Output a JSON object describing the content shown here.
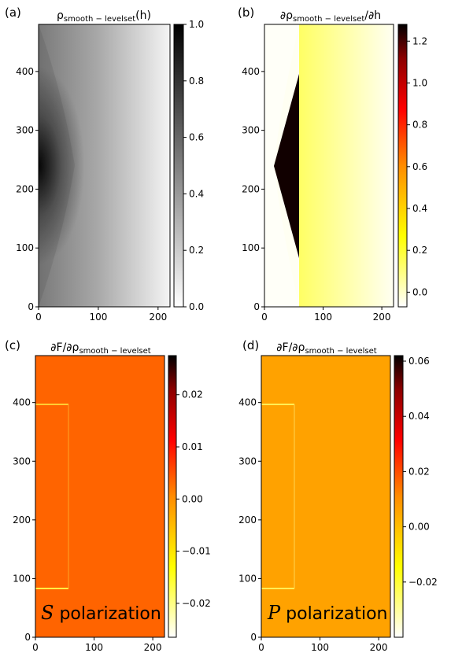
{
  "chart_data": [
    {
      "type": "heatmap",
      "panel_label": "(a)",
      "title_parts": [
        "ρ",
        "smooth − levelset",
        "(h)"
      ],
      "xlim": [
        0,
        220
      ],
      "ylim": [
        0,
        480
      ],
      "xticks": [
        0,
        100,
        200
      ],
      "yticks": [
        0,
        100,
        200,
        300,
        400
      ],
      "colormap": "gray_r",
      "colorbar": {
        "range": [
          0.0,
          1.0
        ],
        "ticks": [
          "0.0",
          "0.2",
          "0.4",
          "0.6",
          "0.8",
          "1.0"
        ],
        "tick_values": [
          0.0,
          0.2,
          0.4,
          0.6,
          0.8,
          1.0
        ]
      },
      "annotation": null
    },
    {
      "type": "heatmap",
      "panel_label": "(b)",
      "title_parts": [
        "∂ρ",
        "smooth − levelset",
        "/∂h"
      ],
      "xlim": [
        0,
        220
      ],
      "ylim": [
        0,
        480
      ],
      "xticks": [
        0,
        100,
        200
      ],
      "yticks": [
        0,
        100,
        200,
        300,
        400
      ],
      "colormap": "hot_r",
      "colorbar": {
        "range": [
          -0.07,
          1.28
        ],
        "ticks": [
          "0.0",
          "0.2",
          "0.4",
          "0.6",
          "0.8",
          "1.0",
          "1.2"
        ],
        "tick_values": [
          0.0,
          0.2,
          0.4,
          0.6,
          0.8,
          1.0,
          1.2
        ]
      },
      "annotation": null
    },
    {
      "type": "heatmap",
      "panel_label": "(c)",
      "title_parts": [
        "∂F/∂ρ",
        "smooth − levelset",
        ""
      ],
      "xlim": [
        0,
        220
      ],
      "ylim": [
        0,
        480
      ],
      "xticks": [
        0,
        100,
        200
      ],
      "yticks": [
        0,
        100,
        200,
        300,
        400
      ],
      "colormap": "hot_r",
      "colorbar": {
        "range": [
          -0.0265,
          0.0275
        ],
        "ticks": [
          "−0.02",
          "−0.01",
          "0.00",
          "0.01",
          "0.02"
        ],
        "tick_values": [
          -0.02,
          -0.01,
          0.0,
          0.01,
          0.02
        ]
      },
      "annotation": {
        "symbol": "S",
        "text": " polarization"
      }
    },
    {
      "type": "heatmap",
      "panel_label": "(d)",
      "title_parts": [
        "∂F/∂ρ",
        "smooth − levelset",
        ""
      ],
      "xlim": [
        0,
        220
      ],
      "ylim": [
        0,
        480
      ],
      "xticks": [
        0,
        100,
        200
      ],
      "yticks": [
        0,
        100,
        200,
        300,
        400
      ],
      "colormap": "hot_r",
      "colorbar": {
        "range": [
          -0.04,
          0.062
        ],
        "ticks": [
          "−0.02",
          "0.00",
          "0.02",
          "0.04",
          "0.06"
        ],
        "tick_values": [
          -0.02,
          0.0,
          0.02,
          0.04,
          0.06
        ]
      },
      "annotation": {
        "symbol": "P",
        "text": " polarization"
      }
    }
  ]
}
